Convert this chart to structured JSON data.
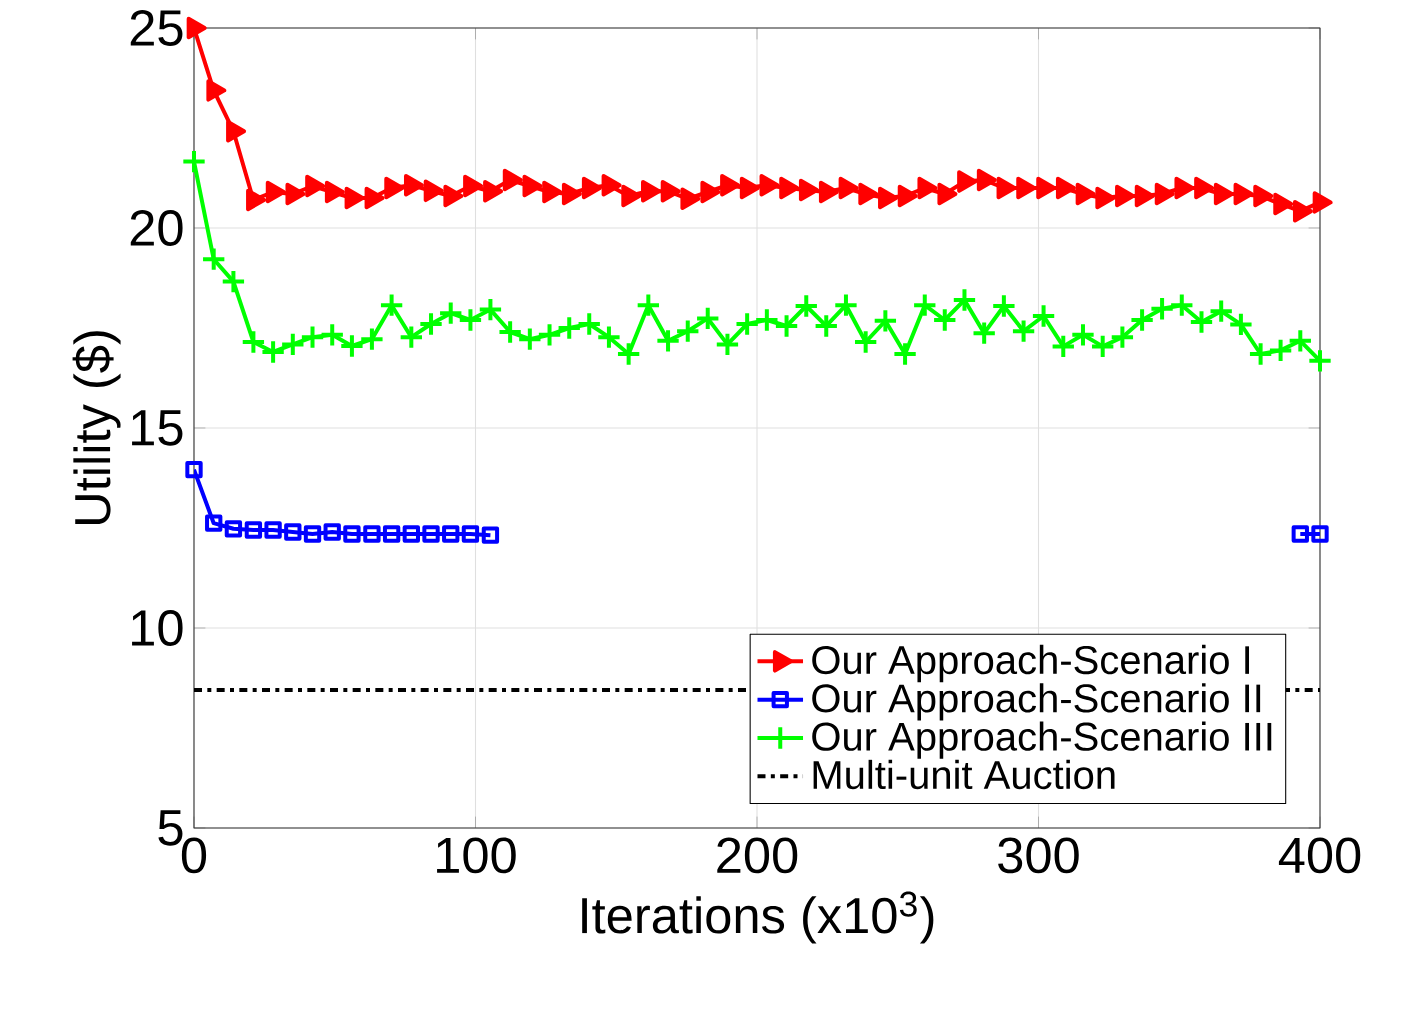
{
  "chart_data": {
    "type": "line",
    "xlabel": "Iterations (x10$^{3}$)",
    "ylabel": "Utility ($)",
    "x": [
      0,
      7.0,
      14.0,
      21.1,
      28.1,
      35.1,
      42.1,
      49.1,
      56.1,
      63.2,
      70.2,
      77.2,
      84.2,
      91.2,
      98.2,
      105.3,
      112.3,
      119.3,
      126.3,
      133.3,
      140.4,
      147.4,
      154.4,
      161.4,
      168.4,
      175.4,
      182.5,
      189.5,
      196.5,
      203.5,
      210.5,
      217.5,
      224.6,
      231.6,
      238.6,
      245.6,
      252.6,
      259.6,
      266.7,
      273.7,
      280.7,
      287.7,
      294.7,
      301.8,
      308.8,
      315.8,
      322.8,
      329.8,
      336.8,
      343.9,
      350.9,
      357.9,
      364.9,
      371.9,
      378.9,
      386.0,
      393.0,
      400
    ],
    "series": [
      {
        "name": "Our Approach-Scenario I",
        "color": "#ff0000",
        "marker": "triangle",
        "values": [
          25,
          23.44,
          22.42,
          20.7,
          20.9,
          20.85,
          21.05,
          20.9,
          20.75,
          20.75,
          21.0,
          21.07,
          20.93,
          20.8,
          21.05,
          20.92,
          21.2,
          21.05,
          20.9,
          20.85,
          21.0,
          21.07,
          20.8,
          20.92,
          20.92,
          20.73,
          20.9,
          21.07,
          21.0,
          21.07,
          21.0,
          20.95,
          20.9,
          21.0,
          20.85,
          20.75,
          20.8,
          21.0,
          20.85,
          21.16,
          21.2,
          21.0,
          21.0,
          21.0,
          21.0,
          20.85,
          20.75,
          20.8,
          20.8,
          20.85,
          21.0,
          21.0,
          20.85,
          20.85,
          20.8,
          20.6,
          20.42,
          20.64
        ]
      },
      {
        "name": "Our Approach-Scenario II",
        "color": "#0000ff",
        "marker": "square",
        "values": [
          13.96,
          12.62,
          12.48,
          12.45,
          12.45,
          12.4,
          12.35,
          12.4,
          12.35,
          12.35,
          12.35,
          12.35,
          12.35,
          12.35,
          12.35,
          12.32,
          null,
          null,
          null,
          null,
          null,
          null,
          null,
          null,
          null,
          null,
          null,
          null,
          null,
          null,
          null,
          null,
          null,
          null,
          null,
          null,
          null,
          null,
          null,
          null,
          null,
          null,
          null,
          null,
          null,
          null,
          null,
          null,
          null,
          null,
          null,
          null,
          null,
          null,
          null,
          null,
          12.35,
          12.35
        ]
      },
      {
        "name": "Our Approach-Scenario III",
        "color": "#00ff00",
        "marker": "cross",
        "values": [
          21.66,
          19.22,
          18.66,
          17.15,
          16.9,
          17.09,
          17.27,
          17.33,
          17.05,
          17.22,
          18.07,
          17.27,
          17.6,
          17.87,
          17.7,
          17.96,
          17.4,
          17.22,
          17.33,
          17.5,
          17.6,
          17.27,
          16.85,
          18.07,
          17.18,
          17.42,
          17.74,
          17.09,
          17.6,
          17.7,
          17.55,
          18.05,
          17.55,
          18.07,
          17.15,
          17.68,
          16.85,
          18.07,
          17.7,
          18.2,
          17.37,
          18.05,
          17.42,
          17.8,
          17.04,
          17.33,
          17.04,
          17.27,
          17.7,
          17.98,
          18.07,
          17.65,
          17.92,
          17.59,
          16.85,
          16.94,
          17.18,
          16.68
        ]
      },
      {
        "name": "Multi-unit Auction",
        "color": "#000000",
        "marker": "none",
        "line_style": "dashdot",
        "x": [
          0,
          400
        ],
        "values": [
          8.45,
          8.45
        ]
      }
    ],
    "xlim": [
      0,
      400
    ],
    "ylim": [
      5,
      25
    ],
    "xticks": [
      0,
      100,
      200,
      300,
      400
    ],
    "yticks": [
      5,
      10,
      15,
      20,
      25
    ],
    "grid": true,
    "legend": "bottom right"
  }
}
